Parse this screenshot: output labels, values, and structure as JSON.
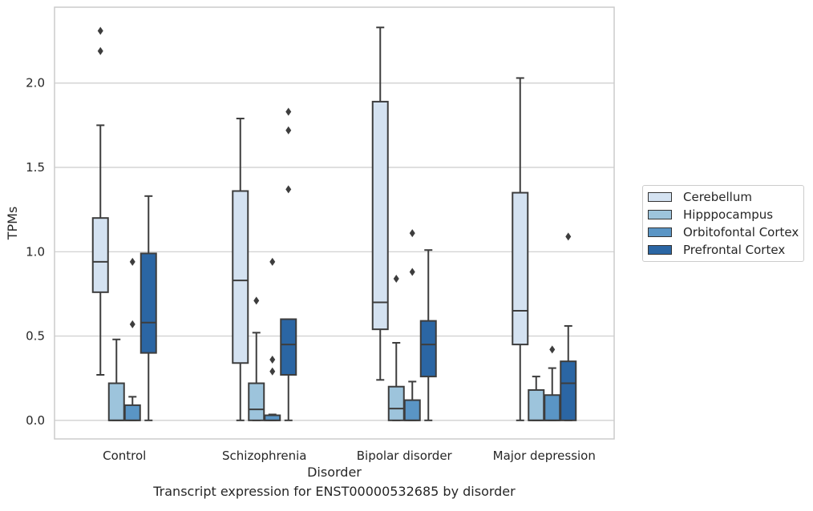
{
  "caption": "Transcript expression for ENST00000532685 by disorder",
  "chart_data": {
    "type": "boxplot",
    "title": "",
    "xlabel": "Disorder",
    "ylabel": "TPMs",
    "ylim": [
      -0.11,
      2.45
    ],
    "yticks": [
      "0.0",
      "0.5",
      "1.0",
      "1.5",
      "2.0"
    ],
    "grid": "horizontal",
    "legend_position": "right",
    "categories": [
      "Control",
      "Schizophrenia",
      "Bipolar disorder",
      "Major depression"
    ],
    "series": [
      {
        "name": "Cerebellum",
        "color": "#d4e2f1",
        "boxes": [
          {
            "whislo": 0.27,
            "q1": 0.76,
            "med": 0.94,
            "q3": 1.2,
            "whishi": 1.75,
            "fliers": [
              2.19,
              2.31
            ]
          },
          {
            "whislo": 0.0,
            "q1": 0.34,
            "med": 0.83,
            "q3": 1.36,
            "whishi": 1.79,
            "fliers": []
          },
          {
            "whislo": 0.24,
            "q1": 0.54,
            "med": 0.7,
            "q3": 1.89,
            "whishi": 2.33,
            "fliers": []
          },
          {
            "whislo": 0.0,
            "q1": 0.45,
            "med": 0.65,
            "q3": 1.35,
            "whishi": 2.03,
            "fliers": []
          }
        ]
      },
      {
        "name": "Hipppocampus",
        "color": "#9dc4dc",
        "boxes": [
          {
            "whislo": 0.0,
            "q1": 0.0,
            "med": 0.0,
            "q3": 0.22,
            "whishi": 0.48,
            "fliers": []
          },
          {
            "whislo": 0.0,
            "q1": 0.0,
            "med": 0.065,
            "q3": 0.22,
            "whishi": 0.52,
            "fliers": [
              0.71
            ]
          },
          {
            "whislo": 0.0,
            "q1": 0.0,
            "med": 0.07,
            "q3": 0.2,
            "whishi": 0.46,
            "fliers": [
              0.84
            ]
          },
          {
            "whislo": 0.0,
            "q1": 0.0,
            "med": 0.0,
            "q3": 0.18,
            "whishi": 0.26,
            "fliers": []
          }
        ]
      },
      {
        "name": "Orbitofontal Cortex",
        "color": "#5a95c5",
        "boxes": [
          {
            "whislo": 0.0,
            "q1": 0.0,
            "med": 0.0,
            "q3": 0.09,
            "whishi": 0.14,
            "fliers": [
              0.57,
              0.94
            ]
          },
          {
            "whislo": 0.0,
            "q1": 0.0,
            "med": 0.0,
            "q3": 0.03,
            "whishi": 0.035,
            "fliers": [
              0.29,
              0.36,
              0.94
            ]
          },
          {
            "whislo": 0.0,
            "q1": 0.0,
            "med": 0.0,
            "q3": 0.12,
            "whishi": 0.23,
            "fliers": [
              0.88,
              1.11
            ]
          },
          {
            "whislo": 0.0,
            "q1": 0.0,
            "med": 0.0,
            "q3": 0.15,
            "whishi": 0.31,
            "fliers": [
              0.42
            ]
          }
        ]
      },
      {
        "name": "Prefrontal Cortex",
        "color": "#2b66a4",
        "boxes": [
          {
            "whislo": 0.0,
            "q1": 0.4,
            "med": 0.58,
            "q3": 0.99,
            "whishi": 1.33,
            "fliers": []
          },
          {
            "whislo": 0.0,
            "q1": 0.27,
            "med": 0.45,
            "q3": 0.6,
            "whishi": 0.6,
            "fliers": [
              1.37,
              1.72,
              1.83
            ]
          },
          {
            "whislo": 0.0,
            "q1": 0.26,
            "med": 0.45,
            "q3": 0.59,
            "whishi": 1.01,
            "fliers": []
          },
          {
            "whislo": 0.0,
            "q1": 0.0,
            "med": 0.22,
            "q3": 0.35,
            "whishi": 0.56,
            "fliers": [
              1.09
            ]
          }
        ]
      }
    ]
  }
}
